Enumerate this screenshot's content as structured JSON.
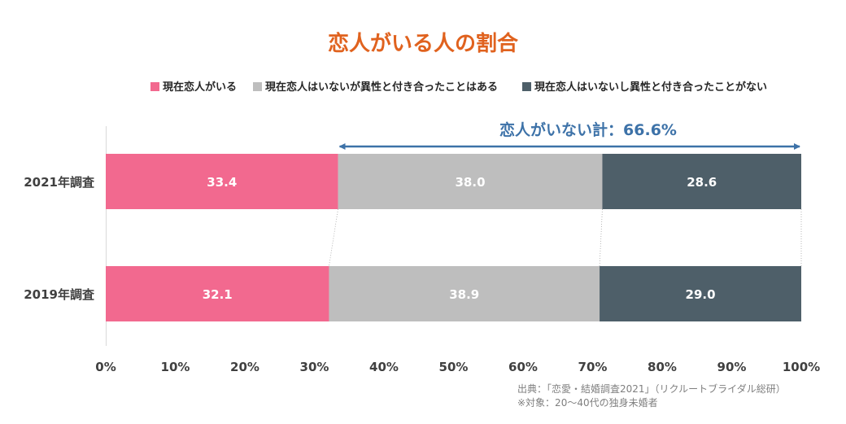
{
  "chart_data": {
    "type": "bar",
    "orientation": "horizontal",
    "stacked": "percent",
    "title": "恋人がいる人の割合",
    "categories": [
      "2021年調査",
      "2019年調査"
    ],
    "series": [
      {
        "name": "現在恋人がいる",
        "color": "#f2698f",
        "values": [
          33.4,
          32.1
        ]
      },
      {
        "name": "現在恋人はいないが異性と付き合ったことはある",
        "color": "#bebebe",
        "values": [
          38.0,
          38.9
        ]
      },
      {
        "name": "現在恋人はいないし異性と付き合ったことがない",
        "color": "#4e5f69",
        "values": [
          28.6,
          29.0
        ]
      }
    ],
    "xlim": [
      0,
      100
    ],
    "xticks": [
      "0%",
      "10%",
      "20%",
      "30%",
      "40%",
      "50%",
      "60%",
      "70%",
      "80%",
      "90%",
      "100%"
    ],
    "legend_position": "top",
    "grid": false,
    "annotation": {
      "text": "恋人がいない計：66.6%",
      "color": "#3d72a8",
      "from_x": 33.4,
      "to_x": 100
    },
    "source_lines": [
      "出典：「恋愛・結婚調査2021」（リクルートブライダル総研）",
      "※対象：20〜40代の独身未婚者"
    ],
    "title_color": "#e0621e"
  }
}
